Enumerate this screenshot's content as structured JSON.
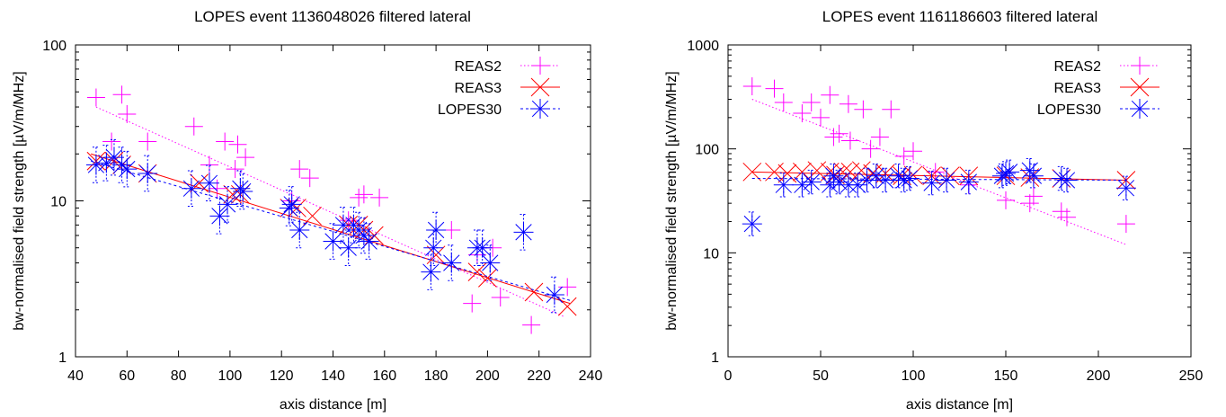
{
  "chart_data": [
    {
      "type": "scatter",
      "title": "LOPES event 1136048026 filtered lateral",
      "xlabel": "axis distance [m]",
      "ylabel": "bw-normalised field strength [µV/m/MHz]",
      "xlim": [
        40,
        240
      ],
      "ylim": [
        1,
        100
      ],
      "yscale": "log",
      "xticks": [
        40,
        60,
        80,
        100,
        120,
        140,
        160,
        180,
        200,
        220,
        240
      ],
      "yticks": [
        1,
        10,
        100
      ],
      "legend_position": "top-right",
      "series": [
        {
          "name": "REAS2",
          "color": "#ff00ff",
          "marker": "plus",
          "points": [
            [
              48,
              46
            ],
            [
              54,
              24
            ],
            [
              58,
              48
            ],
            [
              60,
              36
            ],
            [
              68,
              24
            ],
            [
              86,
              30
            ],
            [
              92,
              17
            ],
            [
              95,
              12
            ],
            [
              98,
              24
            ],
            [
              102,
              16
            ],
            [
              103,
              23
            ],
            [
              106,
              19
            ],
            [
              124,
              10
            ],
            [
              127,
              16
            ],
            [
              131,
              14
            ],
            [
              146,
              7.5
            ],
            [
              150,
              10.5
            ],
            [
              152,
              11
            ],
            [
              158,
              10.5
            ],
            [
              186,
              6.5
            ],
            [
              194,
              2.2
            ],
            [
              196,
              4.5
            ],
            [
              202,
              5
            ],
            [
              205,
              2.4
            ],
            [
              217,
              1.6
            ],
            [
              231,
              2.8
            ]
          ],
          "fit": [
            [
              48,
              40
            ],
            [
              230,
              1.8
            ]
          ]
        },
        {
          "name": "REAS3",
          "color": "#ff0000",
          "marker": "x",
          "points": [
            [
              48,
              18
            ],
            [
              55,
              18
            ],
            [
              58,
              17
            ],
            [
              68,
              15
            ],
            [
              88,
              13
            ],
            [
              101,
              11
            ],
            [
              104,
              11
            ],
            [
              123,
              9
            ],
            [
              126,
              9
            ],
            [
              132,
              8
            ],
            [
              146,
              7
            ],
            [
              150,
              7
            ],
            [
              152,
              6.5
            ],
            [
              156,
              6
            ],
            [
              180,
              4.5
            ],
            [
              196,
              3.5
            ],
            [
              200,
              3.2
            ],
            [
              218,
              2.6
            ],
            [
              231,
              2.1
            ]
          ],
          "fit": [
            [
              46,
              20
            ],
            [
              232,
              2.2
            ]
          ]
        },
        {
          "name": "LOPES30",
          "color": "#0000ff",
          "marker": "star",
          "points": [
            [
              48,
              17
            ],
            [
              52,
              17.5
            ],
            [
              55,
              19
            ],
            [
              58,
              17
            ],
            [
              60,
              16
            ],
            [
              68,
              15
            ],
            [
              85,
              12
            ],
            [
              92,
              13
            ],
            [
              96,
              8
            ],
            [
              99,
              9.5
            ],
            [
              104,
              12
            ],
            [
              105,
              11.5
            ],
            [
              123,
              9
            ],
            [
              124,
              9.5
            ],
            [
              127,
              6.5
            ],
            [
              140,
              5.5
            ],
            [
              144,
              7
            ],
            [
              146,
              5
            ],
            [
              148,
              7
            ],
            [
              150,
              6.5
            ],
            [
              152,
              6
            ],
            [
              154,
              5.5
            ],
            [
              178,
              3.5
            ],
            [
              179,
              5
            ],
            [
              180,
              6.5
            ],
            [
              186,
              4
            ],
            [
              196,
              5
            ],
            [
              198,
              5
            ],
            [
              201,
              4
            ],
            [
              214,
              6.3
            ],
            [
              226,
              2.5
            ]
          ],
          "fit": [
            [
              46,
              18
            ],
            [
              232,
              2.3
            ]
          ]
        }
      ]
    },
    {
      "type": "scatter",
      "title": "LOPES event 1161186603 filtered lateral",
      "xlabel": "axis distance [m]",
      "ylabel": "bw-normalised field strength [µV/m/MHz]",
      "xlim": [
        0,
        250
      ],
      "ylim": [
        1,
        1000
      ],
      "yscale": "log",
      "xticks": [
        0,
        50,
        100,
        150,
        200,
        250
      ],
      "yticks": [
        1,
        10,
        100,
        1000
      ],
      "legend_position": "top-right",
      "series": [
        {
          "name": "REAS2",
          "color": "#ff00ff",
          "marker": "plus",
          "points": [
            [
              13,
              400
            ],
            [
              25,
              380
            ],
            [
              30,
              280
            ],
            [
              40,
              220
            ],
            [
              45,
              280
            ],
            [
              50,
              200
            ],
            [
              55,
              330
            ],
            [
              57,
              130
            ],
            [
              60,
              140
            ],
            [
              65,
              270
            ],
            [
              66,
              120
            ],
            [
              73,
              240
            ],
            [
              77,
              100
            ],
            [
              82,
              130
            ],
            [
              88,
              240
            ],
            [
              95,
              85
            ],
            [
              100,
              95
            ],
            [
              112,
              60
            ],
            [
              130,
              45
            ],
            [
              150,
              32
            ],
            [
              163,
              30
            ],
            [
              165,
              35
            ],
            [
              180,
              25
            ],
            [
              183,
              22
            ],
            [
              215,
              19
            ]
          ],
          "fit": [
            [
              13,
              300
            ],
            [
              215,
              12
            ]
          ]
        },
        {
          "name": "REAS3",
          "color": "#ff0000",
          "marker": "x",
          "points": [
            [
              13,
              60
            ],
            [
              25,
              60
            ],
            [
              32,
              58
            ],
            [
              40,
              60
            ],
            [
              48,
              62
            ],
            [
              55,
              60
            ],
            [
              58,
              56
            ],
            [
              62,
              60
            ],
            [
              66,
              60
            ],
            [
              72,
              62
            ],
            [
              78,
              58
            ],
            [
              85,
              58
            ],
            [
              94,
              55
            ],
            [
              100,
              56
            ],
            [
              110,
              55
            ],
            [
              120,
              55
            ],
            [
              130,
              55
            ],
            [
              150,
              55
            ],
            [
              163,
              53
            ],
            [
              180,
              52
            ],
            [
              215,
              50
            ]
          ],
          "fit": [
            [
              13,
              60
            ],
            [
              215,
              50
            ]
          ]
        },
        {
          "name": "LOPES30",
          "color": "#0000ff",
          "marker": "star",
          "points": [
            [
              13,
              19
            ],
            [
              30,
              45
            ],
            [
              40,
              45
            ],
            [
              45,
              48
            ],
            [
              55,
              45
            ],
            [
              57,
              55
            ],
            [
              60,
              48
            ],
            [
              65,
              45
            ],
            [
              70,
              45
            ],
            [
              75,
              50
            ],
            [
              80,
              55
            ],
            [
              85,
              50
            ],
            [
              92,
              55
            ],
            [
              95,
              50
            ],
            [
              98,
              52
            ],
            [
              110,
              47
            ],
            [
              118,
              50
            ],
            [
              130,
              48
            ],
            [
              148,
              55
            ],
            [
              150,
              58
            ],
            [
              152,
              60
            ],
            [
              163,
              62
            ],
            [
              165,
              55
            ],
            [
              180,
              52
            ],
            [
              183,
              50
            ],
            [
              215,
              42
            ]
          ],
          "fit": [
            [
              13,
              52
            ],
            [
              215,
              50
            ]
          ]
        }
      ]
    }
  ]
}
